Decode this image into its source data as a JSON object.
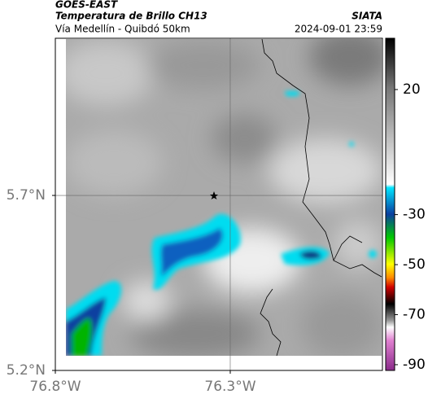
{
  "header": {
    "source": "GOES-EAST",
    "title": "Temperatura de Brillo CH13",
    "subtitle": "Vía Medellín - Quibdó 50km",
    "org": "SIATA",
    "time": "2024-09-01 23:59"
  },
  "map": {
    "xlim": [
      -76.8,
      -75.865
    ],
    "ylim": [
      5.2,
      6.149
    ],
    "xticks": [
      {
        "value": -76.8,
        "label": "76.8°W"
      },
      {
        "value": -76.3,
        "label": "76.3°W"
      }
    ],
    "yticks": [
      {
        "value": 5.2,
        "label": "5.2°N"
      },
      {
        "value": 5.7,
        "label": "5.7°N"
      }
    ],
    "grid": true
  },
  "colorbar": {
    "lim": [
      -92.3,
      40.5
    ],
    "ticks": [
      20,
      -30,
      -50,
      -70,
      -90
    ]
  }
}
